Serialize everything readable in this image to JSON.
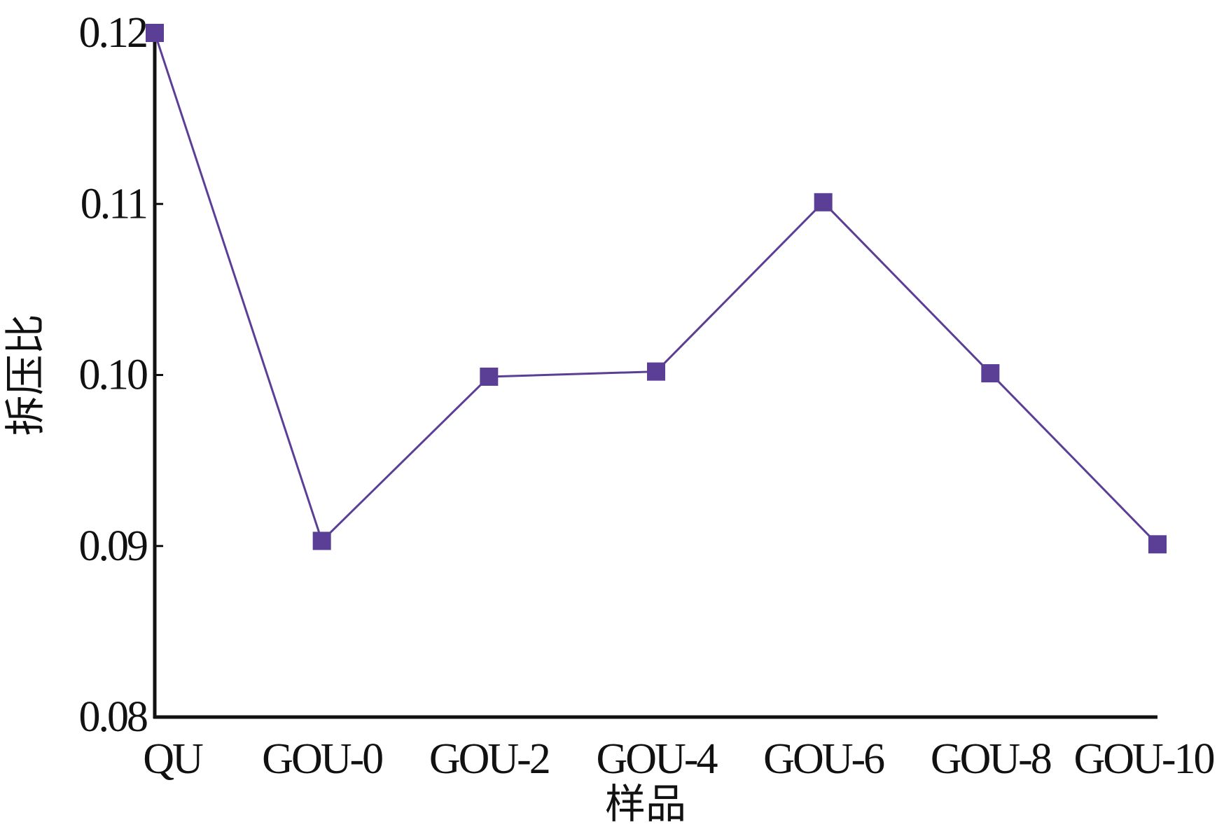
{
  "chart_data": {
    "type": "line",
    "title": "",
    "xlabel": "样品",
    "ylabel": "拆压比",
    "categories": [
      "QU",
      "GOU-0",
      "GOU-2",
      "GOU-4",
      "GOU-6",
      "GOU-8",
      "GOU-10"
    ],
    "series": [
      {
        "values": [
          0.12,
          0.0903,
          0.0999,
          0.1002,
          0.1101,
          0.1001,
          0.0901
        ],
        "color": "#5b3f96",
        "marker": "square"
      }
    ],
    "yticks": [
      "0.08",
      "0.09",
      "0.10",
      "0.11",
      "0.12"
    ],
    "ylim": [
      0.08,
      0.12
    ],
    "grid": false,
    "legend": "none"
  }
}
